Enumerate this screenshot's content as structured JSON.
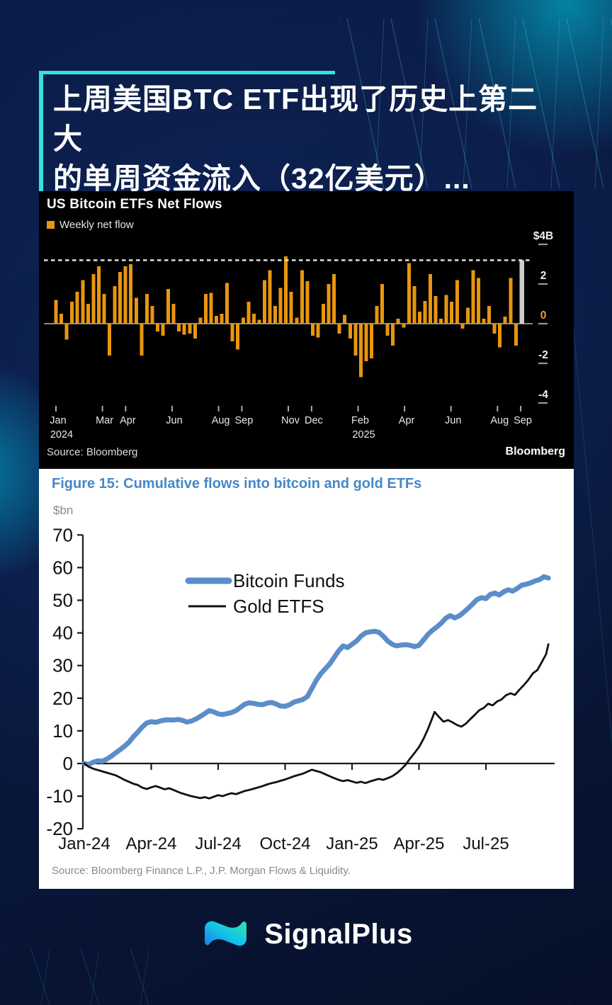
{
  "headline": {
    "line1": "上周美国BTC ETF出现了历史上第二大",
    "line2": "的单周资金流入（32亿美元）...",
    "accent_color": "#35e3d4"
  },
  "chart_data": [
    {
      "type": "bar",
      "title": "US Bitcoin ETFs Net Flows",
      "legend": [
        "Weekly net flow"
      ],
      "bar_color": "#e8960f",
      "highlight_bar_color": "#cccccc",
      "zero_label_color": "#e8a02a",
      "ylabel_top": "$4B",
      "yticks": [
        4,
        2,
        0,
        -2,
        -4
      ],
      "ylim": [
        -4.6,
        4.2
      ],
      "dashed_reference_line": 3.2,
      "x_ticks": [
        {
          "m": 0,
          "label": "Jan",
          "year": "2024"
        },
        {
          "m": 2,
          "label": "Mar"
        },
        {
          "m": 3,
          "label": "Apr"
        },
        {
          "m": 5,
          "label": "Jun"
        },
        {
          "m": 7,
          "label": "Aug"
        },
        {
          "m": 8,
          "label": "Sep"
        },
        {
          "m": 10,
          "label": "Nov"
        },
        {
          "m": 11,
          "label": "Dec"
        },
        {
          "m": 13,
          "label": "Feb",
          "year": "2025"
        },
        {
          "m": 15,
          "label": "Apr"
        },
        {
          "m": 17,
          "label": "Jun"
        },
        {
          "m": 19,
          "label": "Aug"
        },
        {
          "m": 20,
          "label": "Sep"
        }
      ],
      "values": [
        1.2,
        0.5,
        -0.8,
        1.1,
        1.6,
        2.2,
        1.0,
        2.5,
        2.9,
        1.5,
        -1.6,
        1.9,
        2.6,
        2.9,
        3.0,
        1.3,
        -1.6,
        1.5,
        0.9,
        -0.4,
        -0.6,
        1.75,
        1.0,
        -0.4,
        -0.55,
        -0.5,
        -0.75,
        0.3,
        1.5,
        1.55,
        0.4,
        0.5,
        2.05,
        -0.9,
        -1.3,
        0.3,
        1.1,
        0.5,
        0.2,
        2.2,
        2.7,
        0.9,
        1.8,
        3.4,
        1.6,
        0.3,
        2.7,
        2.15,
        -0.6,
        -0.7,
        1.0,
        2.0,
        2.5,
        -0.5,
        0.45,
        -0.75,
        -1.6,
        -2.7,
        -1.9,
        -1.75,
        0.9,
        2.0,
        -0.6,
        -1.1,
        0.25,
        -0.2,
        3.05,
        1.9,
        0.6,
        1.15,
        2.5,
        1.4,
        0.25,
        1.45,
        1.1,
        2.2,
        -0.25,
        0.8,
        2.7,
        2.3,
        0.25,
        0.9,
        -0.5,
        -1.2,
        0.35,
        2.3,
        -1.1,
        3.2
      ],
      "highlight_index": 87,
      "source": "Source: Bloomberg",
      "brand": "Bloomberg"
    },
    {
      "type": "line",
      "title": "Figure 15: Cumulative flows into bitcoin and gold ETFs",
      "unit": "$bn",
      "yticks": [
        70,
        60,
        50,
        40,
        30,
        20,
        10,
        0,
        -10,
        -20
      ],
      "ylim": [
        -20,
        70
      ],
      "x_tick_labels": [
        "Jan-24",
        "Apr-24",
        "Jul-24",
        "Oct-24",
        "Jan-25",
        "Apr-25",
        "Jul-25"
      ],
      "x_tick_months": [
        0,
        3,
        6,
        9,
        12,
        15,
        18
      ],
      "xlim": [
        0,
        21.2
      ],
      "series": [
        {
          "name": "Bitcoin Funds",
          "color": "#5b8dc9",
          "stroke_width": 7,
          "points": [
            [
              0,
              0
            ],
            [
              0.2,
              -0.3
            ],
            [
              0.4,
              0.4
            ],
            [
              0.6,
              0.8
            ],
            [
              0.8,
              0.7
            ],
            [
              1,
              1.3
            ],
            [
              1.2,
              2.2
            ],
            [
              1.4,
              3.2
            ],
            [
              1.6,
              4.2
            ],
            [
              1.8,
              5.3
            ],
            [
              2,
              6.5
            ],
            [
              2.2,
              8.2
            ],
            [
              2.4,
              9.6
            ],
            [
              2.6,
              11.2
            ],
            [
              2.8,
              12.4
            ],
            [
              3,
              12.8
            ],
            [
              3.2,
              12.6
            ],
            [
              3.4,
              13
            ],
            [
              3.6,
              13.3
            ],
            [
              3.8,
              13.4
            ],
            [
              4,
              13.3
            ],
            [
              4.2,
              13.5
            ],
            [
              4.4,
              13.2
            ],
            [
              4.6,
              12.7
            ],
            [
              4.8,
              13
            ],
            [
              5,
              13.6
            ],
            [
              5.2,
              14.4
            ],
            [
              5.4,
              15.3
            ],
            [
              5.6,
              16.2
            ],
            [
              5.8,
              15.8
            ],
            [
              6,
              15.2
            ],
            [
              6.2,
              15
            ],
            [
              6.4,
              15.3
            ],
            [
              6.6,
              15.6
            ],
            [
              6.8,
              16.2
            ],
            [
              7,
              17.2
            ],
            [
              7.2,
              18.2
            ],
            [
              7.4,
              18.6
            ],
            [
              7.6,
              18.4
            ],
            [
              7.8,
              18.1
            ],
            [
              8,
              18
            ],
            [
              8.2,
              18.5
            ],
            [
              8.4,
              18.7
            ],
            [
              8.6,
              18.2
            ],
            [
              8.8,
              17.6
            ],
            [
              9,
              17.5
            ],
            [
              9.2,
              18
            ],
            [
              9.4,
              18.8
            ],
            [
              9.6,
              19.2
            ],
            [
              9.8,
              19.6
            ],
            [
              10,
              20.5
            ],
            [
              10.2,
              23
            ],
            [
              10.4,
              25.5
            ],
            [
              10.6,
              27.5
            ],
            [
              10.8,
              29
            ],
            [
              11,
              30.5
            ],
            [
              11.2,
              32.5
            ],
            [
              11.4,
              34.5
            ],
            [
              11.6,
              36
            ],
            [
              11.8,
              35.5
            ],
            [
              12,
              36.5
            ],
            [
              12.2,
              37.5
            ],
            [
              12.4,
              39
            ],
            [
              12.6,
              40
            ],
            [
              12.8,
              40.3
            ],
            [
              13,
              40.5
            ],
            [
              13.2,
              40.2
            ],
            [
              13.4,
              39
            ],
            [
              13.6,
              37.5
            ],
            [
              13.8,
              36.5
            ],
            [
              14,
              36
            ],
            [
              14.2,
              36.3
            ],
            [
              14.4,
              36.4
            ],
            [
              14.6,
              36.2
            ],
            [
              14.8,
              35.8
            ],
            [
              15,
              36.2
            ],
            [
              15.2,
              37.8
            ],
            [
              15.4,
              39.5
            ],
            [
              15.6,
              40.8
            ],
            [
              15.8,
              41.8
            ],
            [
              16,
              43
            ],
            [
              16.2,
              44.5
            ],
            [
              16.4,
              45.3
            ],
            [
              16.6,
              44.6
            ],
            [
              16.8,
              45.2
            ],
            [
              17,
              46.3
            ],
            [
              17.2,
              47.5
            ],
            [
              17.4,
              48.8
            ],
            [
              17.6,
              50.2
            ],
            [
              17.8,
              50.8
            ],
            [
              18,
              50.5
            ],
            [
              18.2,
              51.8
            ],
            [
              18.4,
              52.2
            ],
            [
              18.6,
              51.6
            ],
            [
              18.8,
              52.6
            ],
            [
              19,
              53.2
            ],
            [
              19.2,
              52.8
            ],
            [
              19.4,
              53.6
            ],
            [
              19.6,
              54.6
            ],
            [
              19.8,
              54.9
            ],
            [
              20,
              55.3
            ],
            [
              20.2,
              55.9
            ],
            [
              20.4,
              56.3
            ],
            [
              20.6,
              57.2
            ],
            [
              20.8,
              56.8
            ]
          ]
        },
        {
          "name": "Gold ETFS",
          "color": "#111111",
          "stroke_width": 2.8,
          "points": [
            [
              0,
              0
            ],
            [
              0.2,
              -1
            ],
            [
              0.4,
              -1.6
            ],
            [
              0.6,
              -2
            ],
            [
              0.8,
              -2.4
            ],
            [
              1,
              -2.8
            ],
            [
              1.2,
              -3.2
            ],
            [
              1.4,
              -3.6
            ],
            [
              1.6,
              -4.3
            ],
            [
              1.8,
              -5
            ],
            [
              2,
              -5.6
            ],
            [
              2.2,
              -6.2
            ],
            [
              2.4,
              -6.6
            ],
            [
              2.6,
              -7.4
            ],
            [
              2.8,
              -7.8
            ],
            [
              3,
              -7.3
            ],
            [
              3.2,
              -6.9
            ],
            [
              3.4,
              -7.4
            ],
            [
              3.6,
              -7.9
            ],
            [
              3.8,
              -7.6
            ],
            [
              4,
              -8.1
            ],
            [
              4.2,
              -8.7
            ],
            [
              4.4,
              -9.2
            ],
            [
              4.6,
              -9.6
            ],
            [
              4.8,
              -10
            ],
            [
              5,
              -10.3
            ],
            [
              5.2,
              -10.6
            ],
            [
              5.4,
              -10.3
            ],
            [
              5.6,
              -10.7
            ],
            [
              5.8,
              -10.2
            ],
            [
              6,
              -9.7
            ],
            [
              6.2,
              -10
            ],
            [
              6.4,
              -9.5
            ],
            [
              6.6,
              -9.1
            ],
            [
              6.8,
              -9.4
            ],
            [
              7,
              -8.9
            ],
            [
              7.2,
              -8.4
            ],
            [
              7.4,
              -8.1
            ],
            [
              7.6,
              -7.7
            ],
            [
              7.8,
              -7.3
            ],
            [
              8,
              -6.9
            ],
            [
              8.2,
              -6.4
            ],
            [
              8.4,
              -6
            ],
            [
              8.6,
              -5.7
            ],
            [
              8.8,
              -5.3
            ],
            [
              9,
              -4.9
            ],
            [
              9.2,
              -4.4
            ],
            [
              9.4,
              -3.9
            ],
            [
              9.6,
              -3.5
            ],
            [
              9.8,
              -3.1
            ],
            [
              10,
              -2.5
            ],
            [
              10.2,
              -1.9
            ],
            [
              10.4,
              -2.3
            ],
            [
              10.6,
              -2.7
            ],
            [
              10.8,
              -3.3
            ],
            [
              11,
              -3.9
            ],
            [
              11.2,
              -4.5
            ],
            [
              11.4,
              -5
            ],
            [
              11.6,
              -5.4
            ],
            [
              11.8,
              -5.1
            ],
            [
              12,
              -5.5
            ],
            [
              12.2,
              -5.9
            ],
            [
              12.4,
              -5.6
            ],
            [
              12.6,
              -6
            ],
            [
              12.8,
              -5.5
            ],
            [
              13,
              -5.1
            ],
            [
              13.2,
              -4.7
            ],
            [
              13.4,
              -5
            ],
            [
              13.6,
              -4.5
            ],
            [
              13.8,
              -3.9
            ],
            [
              14,
              -3
            ],
            [
              14.2,
              -1.8
            ],
            [
              14.4,
              -0.4
            ],
            [
              14.6,
              1.5
            ],
            [
              14.8,
              3.2
            ],
            [
              15,
              5
            ],
            [
              15.2,
              7.5
            ],
            [
              15.4,
              10.5
            ],
            [
              15.6,
              14
            ],
            [
              15.7,
              15.8
            ],
            [
              15.9,
              14.2
            ],
            [
              16.1,
              12.8
            ],
            [
              16.3,
              13.3
            ],
            [
              16.5,
              12.6
            ],
            [
              16.7,
              11.8
            ],
            [
              16.9,
              11.3
            ],
            [
              17.1,
              12.2
            ],
            [
              17.3,
              13.6
            ],
            [
              17.5,
              14.9
            ],
            [
              17.7,
              16.3
            ],
            [
              17.9,
              17
            ],
            [
              18.1,
              18.3
            ],
            [
              18.3,
              17.8
            ],
            [
              18.5,
              19
            ],
            [
              18.7,
              19.6
            ],
            [
              18.9,
              20.9
            ],
            [
              19.1,
              21.5
            ],
            [
              19.3,
              21
            ],
            [
              19.5,
              22.6
            ],
            [
              19.7,
              24
            ],
            [
              19.9,
              25.6
            ],
            [
              20.1,
              27.6
            ],
            [
              20.3,
              28.6
            ],
            [
              20.5,
              31
            ],
            [
              20.7,
              33.5
            ],
            [
              20.8,
              36.5
            ]
          ]
        }
      ],
      "legend_position": "inside-top",
      "grid": false,
      "source": "Source: Bloomberg Finance L.P., J.P. Morgan Flows & Liquidity."
    }
  ],
  "footer": {
    "logo_text": "SignalPlus",
    "logo_gradient": [
      "#35e8a8",
      "#14c4e8",
      "#1b7be8"
    ]
  }
}
